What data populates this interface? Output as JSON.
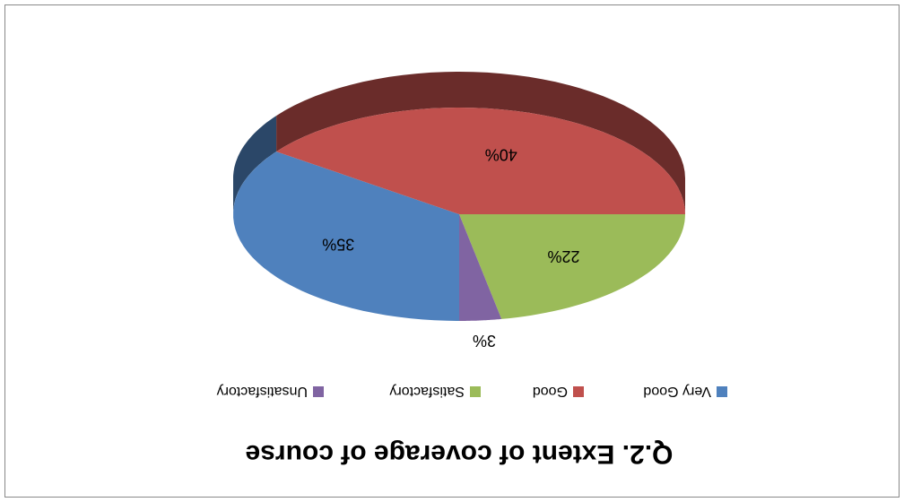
{
  "chart_data": {
    "type": "pie",
    "title": "Q.2. Extent of coverage of course",
    "categories": [
      "Very Good",
      "Good",
      "Satisfactory",
      "Unsatisfactory"
    ],
    "values": [
      35,
      40,
      22,
      3
    ],
    "value_labels": [
      "35%",
      "40%",
      "22%",
      "3%"
    ],
    "colors": [
      "#4f81bd",
      "#c0504d",
      "#9bbb59",
      "#8064a2"
    ],
    "legend": "top",
    "rotated": 180
  }
}
